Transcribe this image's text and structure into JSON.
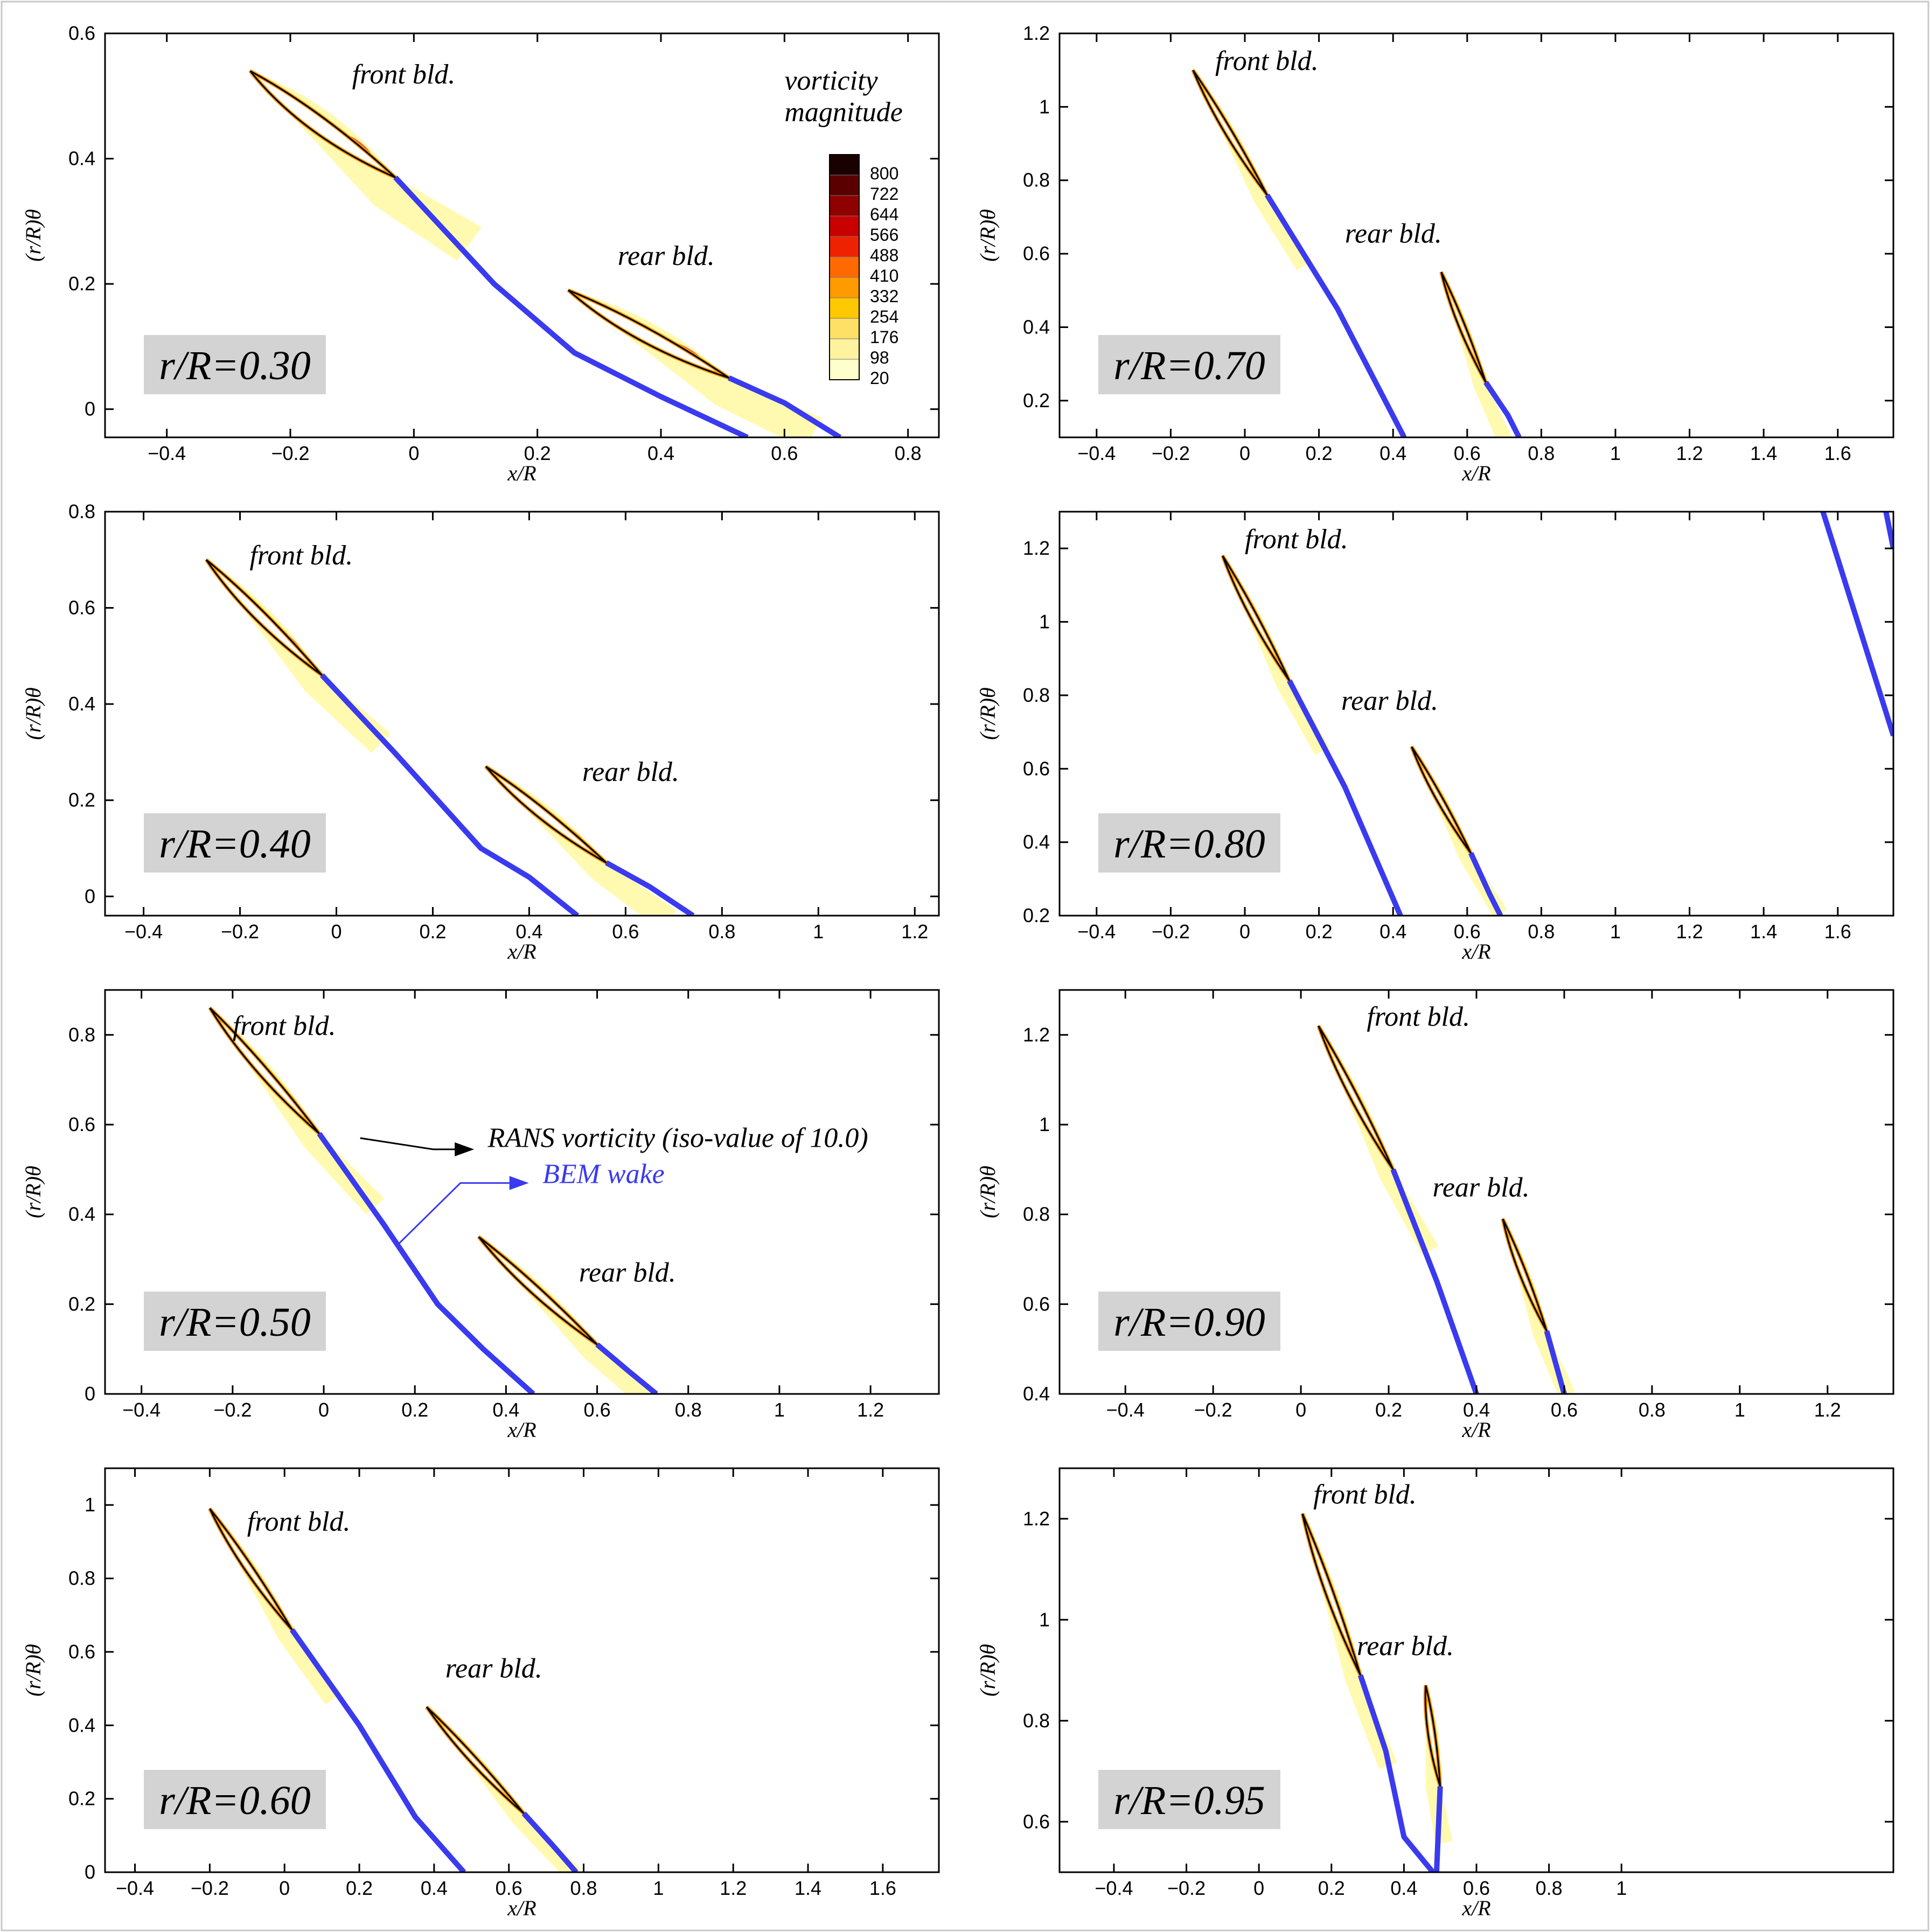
{
  "colors": {
    "bem": "#3a3af0",
    "contour": "#000000",
    "badge": "#d3d3d3",
    "colorbar": [
      "#ffffff",
      "#ffffcc",
      "#fff3a0",
      "#ffe066",
      "#ffc800",
      "#ff9a00",
      "#ff6a00",
      "#ee2200",
      "#c80000",
      "#8f0000",
      "#5a0000",
      "#1a0000"
    ]
  },
  "chart_data": [
    {
      "type": "contour",
      "label": "r/R=0.30",
      "xlabel": "x/R",
      "ylabel": "(r/R)θ",
      "xlim": [
        -0.5,
        0.85
      ],
      "ylim": [
        -0.045,
        0.6
      ],
      "xticks": [
        -0.4,
        -0.2,
        0,
        0.2,
        0.4,
        0.6,
        0.8
      ],
      "xtick_labels": [
        "−0.4",
        "−0.2",
        "0",
        "0.2",
        "0.4",
        "0.6",
        "0.8"
      ],
      "yticks": [
        0,
        0.2,
        0.4,
        0.6
      ],
      "ytick_labels": [
        "0",
        "0.2",
        "0.4",
        "0.6"
      ],
      "annotations": [
        {
          "text": "front bld.",
          "x": -0.1,
          "y": 0.52
        },
        {
          "text": "rear bld.",
          "x": 0.33,
          "y": 0.23
        },
        {
          "text": "vorticity",
          "x": 0.6,
          "y": 0.51
        },
        {
          "text": "magnitude",
          "x": 0.6,
          "y": 0.46
        }
      ],
      "front_blade": {
        "le": [
          -0.265,
          0.54
        ],
        "te": [
          -0.03,
          0.37
        ],
        "thickness": 0.035
      },
      "rear_blade": {
        "le": [
          0.25,
          0.19
        ],
        "te": [
          0.51,
          0.05
        ],
        "thickness": 0.03
      },
      "bem_wake": [
        [
          [
            -0.03,
            0.37
          ],
          [
            0.13,
            0.2
          ],
          [
            0.26,
            0.09
          ],
          [
            0.4,
            0.02
          ],
          [
            0.54,
            -0.045
          ]
        ],
        [
          [
            0.51,
            0.05
          ],
          [
            0.6,
            0.01
          ],
          [
            0.69,
            -0.045
          ]
        ]
      ],
      "legend": {
        "title": [
          "vorticity",
          "magnitude"
        ],
        "levels": [
          "800",
          "722",
          "644",
          "566",
          "488",
          "410",
          "332",
          "254",
          "176",
          "98",
          "20"
        ]
      }
    },
    {
      "type": "contour",
      "label": "r/R=0.70",
      "xlabel": "x/R",
      "ylabel": "(r/R)θ",
      "xlim": [
        -0.5,
        1.75
      ],
      "ylim": [
        0.1,
        1.2
      ],
      "xticks": [
        -0.4,
        -0.2,
        0,
        0.2,
        0.4,
        0.6,
        0.8,
        1,
        1.2,
        1.4,
        1.6
      ],
      "xtick_labels": [
        "−0.4",
        "−0.2",
        "0",
        "0.2",
        "0.4",
        "0.6",
        "0.8",
        "1",
        "1.2",
        "1.4",
        "1.6"
      ],
      "yticks": [
        0.2,
        0.4,
        0.6,
        0.8,
        1,
        1.2
      ],
      "ytick_labels": [
        "0.2",
        "0.4",
        "0.6",
        "0.8",
        "1",
        "1.2"
      ],
      "annotations": [
        {
          "text": "front bld.",
          "x": -0.08,
          "y": 1.1
        },
        {
          "text": "rear bld.",
          "x": 0.27,
          "y": 0.63
        }
      ],
      "front_blade": {
        "le": [
          -0.14,
          1.1
        ],
        "te": [
          0.06,
          0.76
        ],
        "thickness": 0.025
      },
      "rear_blade": {
        "le": [
          0.53,
          0.55
        ],
        "te": [
          0.65,
          0.25
        ],
        "thickness": 0.022
      },
      "bem_wake": [
        [
          [
            0.06,
            0.76
          ],
          [
            0.25,
            0.45
          ],
          [
            0.43,
            0.1
          ]
        ],
        [
          [
            0.65,
            0.25
          ],
          [
            0.71,
            0.16
          ],
          [
            0.74,
            0.1
          ]
        ]
      ]
    },
    {
      "type": "contour",
      "label": "r/R=0.40",
      "xlabel": "x/R",
      "ylabel": "(r/R)θ",
      "xlim": [
        -0.48,
        1.25
      ],
      "ylim": [
        -0.04,
        0.8
      ],
      "xticks": [
        -0.4,
        -0.2,
        0,
        0.2,
        0.4,
        0.6,
        0.8,
        1,
        1.2
      ],
      "xtick_labels": [
        "−0.4",
        "−0.2",
        "0",
        "0.2",
        "0.4",
        "0.6",
        "0.8",
        "1",
        "1.2"
      ],
      "yticks": [
        0,
        0.2,
        0.4,
        0.6,
        0.8
      ],
      "ytick_labels": [
        "0",
        "0.2",
        "0.4",
        "0.6",
        "0.8"
      ],
      "annotations": [
        {
          "text": "front bld.",
          "x": -0.18,
          "y": 0.69
        },
        {
          "text": "rear bld.",
          "x": 0.51,
          "y": 0.24
        }
      ],
      "front_blade": {
        "le": [
          -0.27,
          0.7
        ],
        "te": [
          -0.03,
          0.46
        ],
        "thickness": 0.03
      },
      "rear_blade": {
        "le": [
          0.31,
          0.27
        ],
        "te": [
          0.56,
          0.07
        ],
        "thickness": 0.028
      },
      "bem_wake": [
        [
          [
            -0.03,
            0.46
          ],
          [
            0.12,
            0.3
          ],
          [
            0.3,
            0.1
          ],
          [
            0.4,
            0.04
          ],
          [
            0.5,
            -0.04
          ]
        ],
        [
          [
            0.56,
            0.07
          ],
          [
            0.65,
            0.02
          ],
          [
            0.74,
            -0.04
          ]
        ]
      ]
    },
    {
      "type": "contour",
      "label": "r/R=0.80",
      "xlabel": "x/R",
      "ylabel": "(r/R)θ",
      "xlim": [
        -0.5,
        1.75
      ],
      "ylim": [
        0.2,
        1.3
      ],
      "xticks": [
        -0.4,
        -0.2,
        0,
        0.2,
        0.4,
        0.6,
        0.8,
        1,
        1.2,
        1.4,
        1.6
      ],
      "xtick_labels": [
        "−0.4",
        "−0.2",
        "0",
        "0.2",
        "0.4",
        "0.6",
        "0.8",
        "1",
        "1.2",
        "1.4",
        "1.6"
      ],
      "yticks": [
        0.2,
        0.4,
        0.6,
        0.8,
        1,
        1.2
      ],
      "ytick_labels": [
        "0.2",
        "0.4",
        "0.6",
        "0.8",
        "1",
        "1.2"
      ],
      "annotations": [
        {
          "text": "front bld.",
          "x": 0.0,
          "y": 1.2
        },
        {
          "text": "rear bld.",
          "x": 0.26,
          "y": 0.76
        }
      ],
      "front_blade": {
        "le": [
          -0.06,
          1.18
        ],
        "te": [
          0.12,
          0.84
        ],
        "thickness": 0.024
      },
      "rear_blade": {
        "le": [
          0.45,
          0.66
        ],
        "te": [
          0.61,
          0.37
        ],
        "thickness": 0.022
      },
      "bem_wake": [
        [
          [
            0.12,
            0.84
          ],
          [
            0.27,
            0.55
          ],
          [
            0.42,
            0.2
          ]
        ],
        [
          [
            0.61,
            0.37
          ],
          [
            0.66,
            0.26
          ],
          [
            0.69,
            0.2
          ]
        ],
        [
          [
            1.56,
            1.3
          ],
          [
            1.75,
            0.69
          ]
        ],
        [
          [
            1.73,
            1.3
          ],
          [
            1.75,
            1.2
          ]
        ]
      ]
    },
    {
      "type": "contour",
      "label": "r/R=0.50",
      "xlabel": "x/R",
      "ylabel": "(r/R)θ",
      "xlim": [
        -0.48,
        1.35
      ],
      "ylim": [
        0.0,
        0.9
      ],
      "xticks": [
        -0.4,
        -0.2,
        0,
        0.2,
        0.4,
        0.6,
        0.8,
        1,
        1.2
      ],
      "xtick_labels": [
        "−0.4",
        "−0.2",
        "0",
        "0.2",
        "0.4",
        "0.6",
        "0.8",
        "1",
        "1.2"
      ],
      "yticks": [
        0,
        0.2,
        0.4,
        0.6,
        0.8
      ],
      "ytick_labels": [
        "0",
        "0.2",
        "0.4",
        "0.6",
        "0.8"
      ],
      "annotations": [
        {
          "text": "front bld.",
          "x": -0.2,
          "y": 0.8
        },
        {
          "text": "rear bld.",
          "x": 0.56,
          "y": 0.25
        },
        {
          "text": "RANS vorticity (iso-value of 10.0)",
          "x": 0.36,
          "y": 0.55
        },
        {
          "text": "BEM wake",
          "x": 0.48,
          "y": 0.47
        }
      ],
      "front_blade": {
        "le": [
          -0.25,
          0.86
        ],
        "te": [
          -0.01,
          0.58
        ],
        "thickness": 0.028
      },
      "rear_blade": {
        "le": [
          0.34,
          0.35
        ],
        "te": [
          0.6,
          0.11
        ],
        "thickness": 0.026
      },
      "bem_wake": [
        [
          [
            -0.01,
            0.58
          ],
          [
            0.13,
            0.38
          ],
          [
            0.25,
            0.2
          ],
          [
            0.35,
            0.1
          ],
          [
            0.46,
            0.0
          ]
        ],
        [
          [
            0.6,
            0.11
          ],
          [
            0.67,
            0.05
          ],
          [
            0.73,
            0.0
          ]
        ]
      ]
    },
    {
      "type": "contour",
      "label": "r/R=0.90",
      "xlabel": "x/R",
      "ylabel": "(r/R)θ",
      "xlim": [
        -0.55,
        1.35
      ],
      "ylim": [
        0.4,
        1.3
      ],
      "xticks": [
        -0.4,
        -0.2,
        0,
        0.2,
        0.4,
        0.6,
        0.8,
        1,
        1.2
      ],
      "xtick_labels": [
        "−0.4",
        "−0.2",
        "0",
        "0.2",
        "0.4",
        "0.6",
        "0.8",
        "1",
        "1.2"
      ],
      "yticks": [
        0.4,
        0.6,
        0.8,
        1,
        1.2
      ],
      "ytick_labels": [
        "0.4",
        "0.6",
        "0.8",
        "1",
        "1.2"
      ],
      "annotations": [
        {
          "text": "front bld.",
          "x": 0.15,
          "y": 1.22
        },
        {
          "text": "rear bld.",
          "x": 0.3,
          "y": 0.84
        }
      ],
      "front_blade": {
        "le": [
          0.04,
          1.22
        ],
        "te": [
          0.21,
          0.9
        ],
        "thickness": 0.022
      },
      "rear_blade": {
        "le": [
          0.46,
          0.79
        ],
        "te": [
          0.56,
          0.54
        ],
        "thickness": 0.02
      },
      "bem_wake": [
        [
          [
            0.21,
            0.9
          ],
          [
            0.31,
            0.65
          ],
          [
            0.4,
            0.4
          ]
        ],
        [
          [
            0.56,
            0.54
          ],
          [
            0.58,
            0.47
          ],
          [
            0.6,
            0.4
          ]
        ]
      ]
    },
    {
      "type": "contour",
      "label": "r/R=0.60",
      "xlabel": "x/R",
      "ylabel": "(r/R)θ",
      "xlim": [
        -0.48,
        1.75
      ],
      "ylim": [
        0.0,
        1.1
      ],
      "xticks": [
        -0.4,
        -0.2,
        0,
        0.2,
        0.4,
        0.6,
        0.8,
        1,
        1.2,
        1.4,
        1.6
      ],
      "xtick_labels": [
        "−0.4",
        "−0.2",
        "0",
        "0.2",
        "0.4",
        "0.6",
        "0.8",
        "1",
        "1.2",
        "1.4",
        "1.6"
      ],
      "yticks": [
        0,
        0.2,
        0.4,
        0.6,
        0.8,
        1
      ],
      "ytick_labels": [
        "0",
        "0.2",
        "0.4",
        "0.6",
        "0.8",
        "1"
      ],
      "annotations": [
        {
          "text": "front bld.",
          "x": -0.1,
          "y": 0.93
        },
        {
          "text": "rear bld.",
          "x": 0.43,
          "y": 0.53
        }
      ],
      "front_blade": {
        "le": [
          -0.2,
          0.99
        ],
        "te": [
          0.02,
          0.66
        ],
        "thickness": 0.028
      },
      "rear_blade": {
        "le": [
          0.38,
          0.45
        ],
        "te": [
          0.64,
          0.16
        ],
        "thickness": 0.025
      },
      "bem_wake": [
        [
          [
            0.02,
            0.66
          ],
          [
            0.2,
            0.4
          ],
          [
            0.35,
            0.15
          ],
          [
            0.48,
            0.0
          ]
        ],
        [
          [
            0.64,
            0.16
          ],
          [
            0.72,
            0.07
          ],
          [
            0.78,
            0.0
          ]
        ]
      ]
    },
    {
      "type": "contour",
      "label": "r/R=0.95",
      "xlabel": "x/R",
      "ylabel": "(r/R)θ",
      "xlim": [
        -0.55,
        1.75
      ],
      "ylim": [
        0.5,
        1.3
      ],
      "xticks": [
        -0.4,
        -0.2,
        0,
        0.2,
        0.4,
        0.6,
        0.8,
        1
      ],
      "xtick_labels": [
        "−0.4",
        "−0.2",
        "0",
        "0.2",
        "0.4",
        "0.6",
        "0.8",
        "1"
      ],
      "yticks": [
        0.6,
        0.8,
        1,
        1.2
      ],
      "ytick_labels": [
        "0.6",
        "0.8",
        "1",
        "1.2"
      ],
      "annotations": [
        {
          "text": "front bld.",
          "x": 0.15,
          "y": 1.23
        },
        {
          "text": "rear bld.",
          "x": 0.27,
          "y": 0.93
        }
      ],
      "front_blade": {
        "le": [
          0.12,
          1.21
        ],
        "te": [
          0.28,
          0.89
        ],
        "thickness": 0.02
      },
      "rear_blade": {
        "le": [
          0.46,
          0.87
        ],
        "te": [
          0.5,
          0.67
        ],
        "thickness": 0.018
      },
      "bem_wake": [
        [
          [
            0.28,
            0.89
          ],
          [
            0.35,
            0.74
          ],
          [
            0.4,
            0.57
          ],
          [
            0.48,
            0.5
          ]
        ],
        [
          [
            0.5,
            0.67
          ],
          [
            0.49,
            0.5
          ]
        ]
      ]
    }
  ]
}
